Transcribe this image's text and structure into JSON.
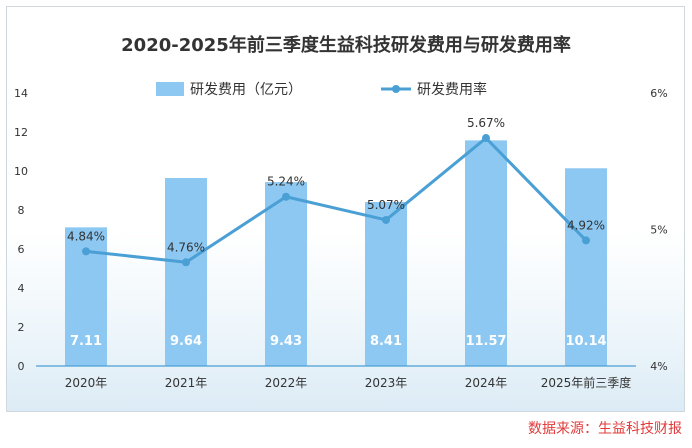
{
  "chart_data": {
    "type": "bar+line",
    "title": "2020-2025年前三季度生益科技研发费用与研发费用率",
    "categories": [
      "2020年",
      "2021年",
      "2022年",
      "2023年",
      "2024年",
      "2025年前三季度"
    ],
    "series": [
      {
        "name": "研发费用（亿元）",
        "type": "bar",
        "axis": "left",
        "values": [
          7.11,
          9.64,
          9.43,
          8.41,
          11.57,
          10.14
        ],
        "labels": [
          "7.11",
          "9.64",
          "9.43",
          "8.41",
          "11.57",
          "10.14"
        ]
      },
      {
        "name": "研发费用率",
        "type": "line",
        "axis": "right",
        "values": [
          4.84,
          4.76,
          5.24,
          5.07,
          5.67,
          4.92
        ],
        "labels": [
          "4.84%",
          "4.76%",
          "5.24%",
          "5.07%",
          "5.67%",
          "4.92%"
        ]
      }
    ],
    "y_left": {
      "ylim": [
        0,
        14
      ],
      "ticks": [
        "0",
        "2",
        "4",
        "6",
        "8",
        "10",
        "12",
        "14"
      ]
    },
    "y_right": {
      "ylim": [
        4,
        6
      ],
      "ticks": [
        "4%",
        "5%",
        "6%"
      ]
    },
    "legend_position": "top-center",
    "colors": {
      "bar": "#8cc8f2",
      "line": "#4a9fd5",
      "bar_label": "#ffffff",
      "text": "#333333"
    }
  },
  "source": "数据来源：生益科技财报"
}
